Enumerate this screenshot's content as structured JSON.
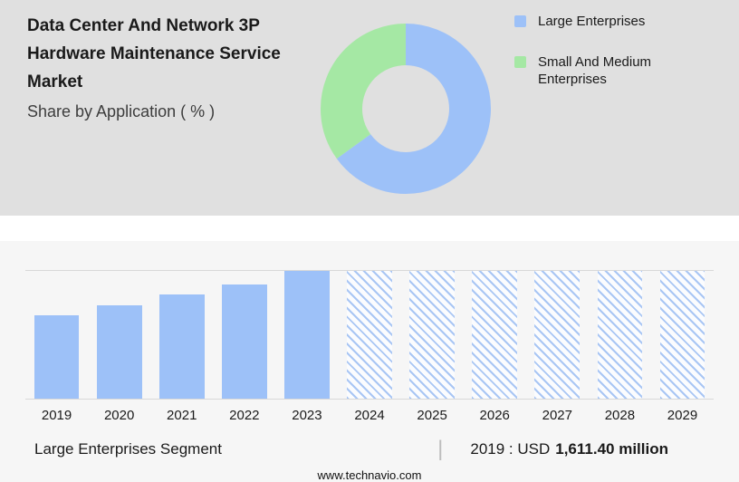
{
  "header": {
    "title": "Data Center And Network 3P Hardware Maintenance Service Market",
    "subtitle": "Share by Application ( % )"
  },
  "legend": [
    {
      "label": "Large Enterprises",
      "color": "#9dc1f8"
    },
    {
      "label": "Small And Medium Enterprises",
      "color": "#a5e8a4"
    }
  ],
  "chart_data": [
    {
      "type": "pie",
      "title": "Share by Application ( % )",
      "labels": [
        "Large Enterprises",
        "Small And Medium Enterprises"
      ],
      "values": [
        65,
        35
      ],
      "colors": [
        "#9dc1f8",
        "#a5e8a4"
      ],
      "donut": true,
      "start_angle_deg": 0,
      "legend_position": "right"
    },
    {
      "type": "bar",
      "categories": [
        "2019",
        "2020",
        "2021",
        "2022",
        "2023",
        "2024",
        "2025",
        "2026",
        "2027",
        "2028",
        "2029"
      ],
      "values": [
        1611.4,
        1805,
        2015,
        2205,
        2470,
        null,
        null,
        null,
        null,
        null,
        null
      ],
      "units": "USD million",
      "ylim": [
        0,
        2470
      ],
      "bar_color": "#9dc1f8",
      "forecast_from": "2024",
      "forecast_style": "hatched-full-height",
      "grid": false,
      "xlabel": "",
      "ylabel": ""
    }
  ],
  "footer": {
    "segment_label": "Large Enterprises Segment",
    "separator": "|",
    "value_prefix": "2019 : USD",
    "value_bold": "1,611.40 million",
    "website": "www.technavio.com"
  }
}
